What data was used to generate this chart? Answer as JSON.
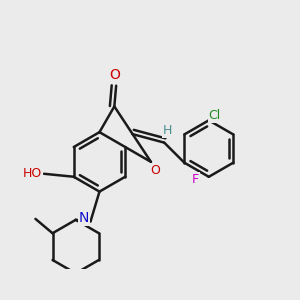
{
  "bg_color": "#ebebeb",
  "bond_color": "#1a1a1a",
  "bond_width": 1.8,
  "atom_colors": {
    "O": "#cc0000",
    "H_green": "#4a9090",
    "N": "#1010cc",
    "Cl": "#228822",
    "F": "#cc00cc"
  },
  "font_size": 9
}
